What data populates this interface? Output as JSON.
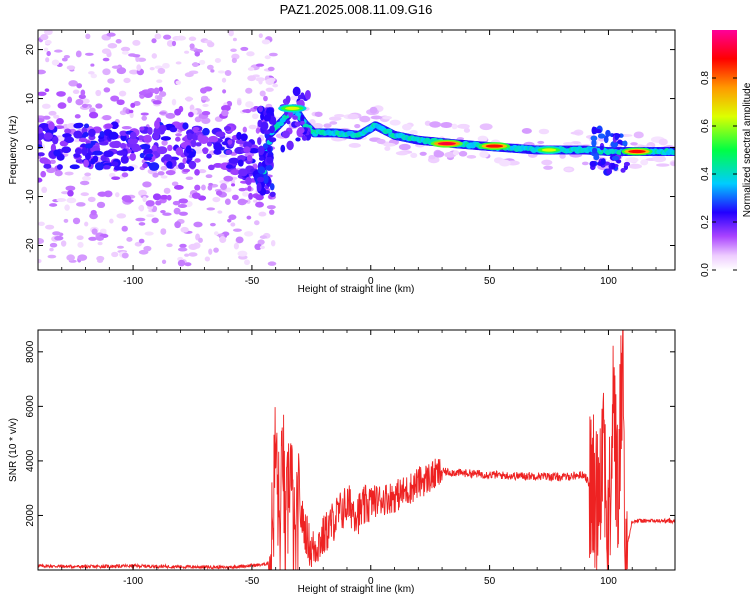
{
  "title": "PAZ1.2025.008.11.09.G16",
  "chart_data": [
    {
      "type": "heatmap",
      "xlabel": "Height of straight line (km)",
      "ylabel": "Frequency (Hz)",
      "xlim": [
        -140,
        128
      ],
      "ylim": [
        -25,
        24
      ],
      "xticks": [
        -100,
        -50,
        0,
        50,
        100
      ],
      "yticks": [
        -20,
        -10,
        0,
        10,
        20
      ],
      "colorbar": {
        "label": "Normalized spectral amplitude",
        "range": [
          0.0,
          1.0
        ],
        "ticks": [
          0.0,
          0.2,
          0.4,
          0.6,
          0.8
        ],
        "tick_labels": [
          "0.0",
          "0.2",
          "0.4",
          "0.6",
          "0.8"
        ],
        "colors": [
          "#ffffff",
          "#cc44ff",
          "#7700ff",
          "#0000ff",
          "#00ccff",
          "#00ff00",
          "#ffff00",
          "#ff8800",
          "#ff0000",
          "#ff0099"
        ]
      },
      "ridge": [
        {
          "x": -140,
          "f": 0.5
        },
        {
          "x": -120,
          "f": 0.5
        },
        {
          "x": -100,
          "f": 0.0
        },
        {
          "x": -80,
          "f": 0.5
        },
        {
          "x": -60,
          "f": 0.0
        },
        {
          "x": -50,
          "f": -3.0
        },
        {
          "x": -46,
          "f": -8.0
        },
        {
          "x": -42,
          "f": 3.0
        },
        {
          "x": -38,
          "f": 5.0
        },
        {
          "x": -32,
          "f": 8.0
        },
        {
          "x": -28,
          "f": 5.0
        },
        {
          "x": -24,
          "f": 3.0
        },
        {
          "x": -15,
          "f": 3.0
        },
        {
          "x": -5,
          "f": 2.5
        },
        {
          "x": 2,
          "f": 4.5
        },
        {
          "x": 10,
          "f": 2.5
        },
        {
          "x": 20,
          "f": 1.5
        },
        {
          "x": 35,
          "f": 0.8
        },
        {
          "x": 50,
          "f": 0.2
        },
        {
          "x": 70,
          "f": -0.5
        },
        {
          "x": 90,
          "f": -0.5
        },
        {
          "x": 100,
          "f": -0.8
        },
        {
          "x": 128,
          "f": -0.8
        }
      ],
      "peaks": [
        {
          "x": -33,
          "f": 8.0,
          "amplitude": 0.7
        },
        {
          "x": 32,
          "f": 0.8,
          "amplitude": 1.0
        },
        {
          "x": 52,
          "f": 0.3,
          "amplitude": 0.95
        },
        {
          "x": 75,
          "f": -0.5,
          "amplitude": 0.7
        },
        {
          "x": 112,
          "f": -0.8,
          "amplitude": 0.95
        }
      ]
    },
    {
      "type": "line",
      "xlabel": "Height of straight line (km)",
      "ylabel": "SNR (10 * v/v)",
      "xlim": [
        -140,
        128
      ],
      "ylim": [
        0,
        8800
      ],
      "xticks": [
        -100,
        -50,
        0,
        50,
        100
      ],
      "yticks": [
        2000,
        4000,
        6000,
        8000
      ],
      "series": [
        {
          "color": "#ee2222",
          "x": [
            -140,
            -120,
            -100,
            -80,
            -60,
            -45,
            -42,
            -40,
            -38,
            -37,
            -36,
            -34,
            -32,
            -30,
            -25,
            -20,
            -15,
            -10,
            -5,
            0,
            5,
            10,
            15,
            20,
            25,
            30,
            40,
            50,
            60,
            70,
            80,
            90,
            95,
            98,
            100,
            102,
            104,
            106,
            107,
            110,
            120,
            128
          ],
          "y": [
            150,
            120,
            150,
            120,
            100,
            200,
            300,
            4500,
            700,
            5300,
            300,
            4200,
            400,
            2200,
            700,
            1200,
            1900,
            2400,
            2100,
            2500,
            2600,
            2700,
            2900,
            3200,
            3400,
            3600,
            3550,
            3500,
            3450,
            3450,
            3400,
            3500,
            2500,
            5200,
            600,
            6600,
            2200,
            8700,
            500,
            1800,
            1800,
            1800
          ]
        }
      ]
    }
  ]
}
